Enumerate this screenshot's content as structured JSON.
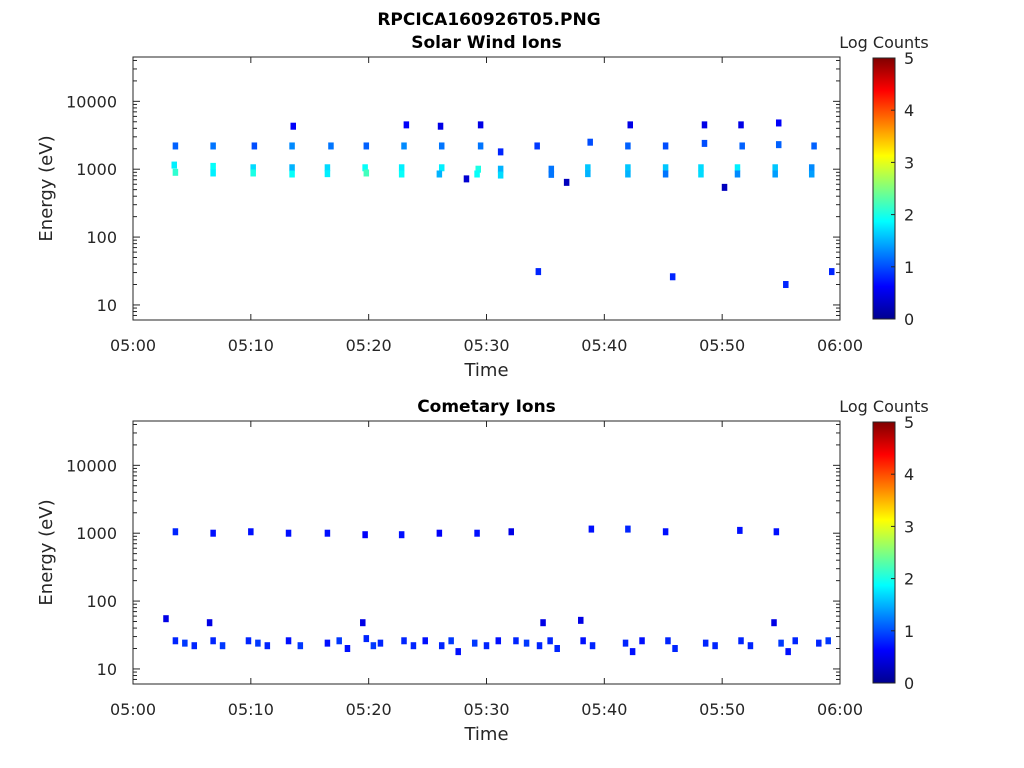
{
  "figure_title": "RPCICA160926T05.PNG",
  "chart_data": [
    {
      "type": "heatmap",
      "title": "Solar Wind Ions",
      "xlabel": "Time",
      "ylabel": "Energy (eV)",
      "x_ticks": [
        "05:00",
        "05:10",
        "05:20",
        "05:30",
        "05:40",
        "05:50",
        "06:00"
      ],
      "y_ticks": [
        "10",
        "100",
        "1000",
        "10000"
      ],
      "y_scale": "log",
      "ylim": [
        6,
        45000
      ],
      "xlim_minutes": [
        0,
        60
      ],
      "colorbar": {
        "label": "Log Counts",
        "ticks": [
          "0",
          "1",
          "2",
          "3",
          "4",
          "5"
        ],
        "range": [
          0,
          5
        ],
        "colormap": "jet"
      },
      "grid": false,
      "cells": [
        {
          "t": 3.6,
          "e": 2200,
          "v": 1.1
        },
        {
          "t": 3.5,
          "e": 1150,
          "v": 1.8
        },
        {
          "t": 3.6,
          "e": 900,
          "v": 2.1
        },
        {
          "t": 6.8,
          "e": 2200,
          "v": 1.2
        },
        {
          "t": 6.8,
          "e": 1100,
          "v": 1.9
        },
        {
          "t": 6.8,
          "e": 880,
          "v": 1.8
        },
        {
          "t": 10.3,
          "e": 2200,
          "v": 1.0
        },
        {
          "t": 10.2,
          "e": 1050,
          "v": 1.7
        },
        {
          "t": 10.2,
          "e": 880,
          "v": 2.0
        },
        {
          "t": 13.6,
          "e": 4300,
          "v": 0.6
        },
        {
          "t": 13.5,
          "e": 2200,
          "v": 1.3
        },
        {
          "t": 13.5,
          "e": 1050,
          "v": 1.5
        },
        {
          "t": 13.5,
          "e": 850,
          "v": 1.9
        },
        {
          "t": 16.8,
          "e": 2200,
          "v": 1.2
        },
        {
          "t": 16.5,
          "e": 1050,
          "v": 1.7
        },
        {
          "t": 16.5,
          "e": 860,
          "v": 1.8
        },
        {
          "t": 19.8,
          "e": 2200,
          "v": 1.1
        },
        {
          "t": 19.7,
          "e": 1050,
          "v": 1.9
        },
        {
          "t": 19.8,
          "e": 880,
          "v": 2.2
        },
        {
          "t": 23.2,
          "e": 4500,
          "v": 0.6
        },
        {
          "t": 23.0,
          "e": 2200,
          "v": 1.3
        },
        {
          "t": 22.8,
          "e": 1050,
          "v": 1.8
        },
        {
          "t": 22.8,
          "e": 850,
          "v": 1.9
        },
        {
          "t": 26.1,
          "e": 4300,
          "v": 0.5
        },
        {
          "t": 26.2,
          "e": 2200,
          "v": 1.2
        },
        {
          "t": 26.2,
          "e": 1050,
          "v": 1.8
        },
        {
          "t": 26.0,
          "e": 850,
          "v": 1.5
        },
        {
          "t": 28.3,
          "e": 720,
          "v": 0.4
        },
        {
          "t": 29.5,
          "e": 4500,
          "v": 0.5
        },
        {
          "t": 29.5,
          "e": 2200,
          "v": 1.2
        },
        {
          "t": 29.3,
          "e": 1000,
          "v": 2.0
        },
        {
          "t": 29.2,
          "e": 850,
          "v": 1.9
        },
        {
          "t": 31.2,
          "e": 1800,
          "v": 0.8
        },
        {
          "t": 31.2,
          "e": 1000,
          "v": 1.5
        },
        {
          "t": 31.2,
          "e": 820,
          "v": 1.7
        },
        {
          "t": 34.3,
          "e": 2200,
          "v": 0.9
        },
        {
          "t": 34.4,
          "e": 31,
          "v": 0.8
        },
        {
          "t": 35.5,
          "e": 1000,
          "v": 1.2
        },
        {
          "t": 35.5,
          "e": 840,
          "v": 1.2
        },
        {
          "t": 36.8,
          "e": 640,
          "v": 0.3
        },
        {
          "t": 38.8,
          "e": 2500,
          "v": 1.0
        },
        {
          "t": 38.6,
          "e": 1050,
          "v": 1.6
        },
        {
          "t": 38.6,
          "e": 860,
          "v": 1.5
        },
        {
          "t": 42.2,
          "e": 4500,
          "v": 0.5
        },
        {
          "t": 42.0,
          "e": 2200,
          "v": 1.1
        },
        {
          "t": 42.0,
          "e": 1050,
          "v": 1.6
        },
        {
          "t": 42.0,
          "e": 850,
          "v": 1.5
        },
        {
          "t": 45.2,
          "e": 2200,
          "v": 1.0
        },
        {
          "t": 45.2,
          "e": 1050,
          "v": 1.6
        },
        {
          "t": 45.2,
          "e": 850,
          "v": 1.2
        },
        {
          "t": 45.8,
          "e": 26,
          "v": 0.8
        },
        {
          "t": 48.5,
          "e": 4500,
          "v": 0.5
        },
        {
          "t": 48.5,
          "e": 2400,
          "v": 1.0
        },
        {
          "t": 48.2,
          "e": 1050,
          "v": 1.7
        },
        {
          "t": 48.2,
          "e": 850,
          "v": 1.7
        },
        {
          "t": 50.2,
          "e": 540,
          "v": 0.3
        },
        {
          "t": 51.6,
          "e": 4500,
          "v": 0.5
        },
        {
          "t": 51.7,
          "e": 2200,
          "v": 1.1
        },
        {
          "t": 51.3,
          "e": 1050,
          "v": 1.8
        },
        {
          "t": 51.3,
          "e": 850,
          "v": 1.3
        },
        {
          "t": 54.8,
          "e": 4800,
          "v": 0.6
        },
        {
          "t": 54.8,
          "e": 2300,
          "v": 1.1
        },
        {
          "t": 54.5,
          "e": 1050,
          "v": 1.6
        },
        {
          "t": 54.5,
          "e": 850,
          "v": 1.4
        },
        {
          "t": 55.4,
          "e": 20,
          "v": 0.8
        },
        {
          "t": 57.8,
          "e": 2200,
          "v": 1.1
        },
        {
          "t": 57.6,
          "e": 1050,
          "v": 1.3
        },
        {
          "t": 57.6,
          "e": 850,
          "v": 1.4
        },
        {
          "t": 59.3,
          "e": 31,
          "v": 0.8
        }
      ]
    },
    {
      "type": "heatmap",
      "title": "Cometary Ions",
      "xlabel": "Time",
      "ylabel": "Energy (eV)",
      "x_ticks": [
        "05:00",
        "05:10",
        "05:20",
        "05:30",
        "05:40",
        "05:50",
        "06:00"
      ],
      "y_ticks": [
        "10",
        "100",
        "1000",
        "10000"
      ],
      "y_scale": "log",
      "ylim": [
        6,
        45000
      ],
      "xlim_minutes": [
        0,
        60
      ],
      "colorbar": {
        "label": "Log Counts",
        "ticks": [
          "0",
          "1",
          "2",
          "3",
          "4",
          "5"
        ],
        "range": [
          0,
          5
        ],
        "colormap": "jet"
      },
      "grid": false,
      "cells": [
        {
          "t": 3.6,
          "e": 1050,
          "v": 0.8
        },
        {
          "t": 6.8,
          "e": 1000,
          "v": 0.7
        },
        {
          "t": 10.0,
          "e": 1050,
          "v": 0.7
        },
        {
          "t": 13.2,
          "e": 1000,
          "v": 0.7
        },
        {
          "t": 16.5,
          "e": 1000,
          "v": 0.7
        },
        {
          "t": 19.7,
          "e": 950,
          "v": 0.6
        },
        {
          "t": 22.8,
          "e": 950,
          "v": 0.7
        },
        {
          "t": 26.0,
          "e": 1000,
          "v": 0.6
        },
        {
          "t": 29.2,
          "e": 1000,
          "v": 0.7
        },
        {
          "t": 32.1,
          "e": 1050,
          "v": 0.5
        },
        {
          "t": 38.9,
          "e": 1150,
          "v": 0.7
        },
        {
          "t": 42.0,
          "e": 1150,
          "v": 0.8
        },
        {
          "t": 45.2,
          "e": 1050,
          "v": 0.7
        },
        {
          "t": 51.5,
          "e": 1100,
          "v": 0.7
        },
        {
          "t": 54.6,
          "e": 1050,
          "v": 0.7
        },
        {
          "t": 2.8,
          "e": 55,
          "v": 0.5
        },
        {
          "t": 6.5,
          "e": 48,
          "v": 0.5
        },
        {
          "t": 19.5,
          "e": 48,
          "v": 0.5
        },
        {
          "t": 34.8,
          "e": 48,
          "v": 0.5
        },
        {
          "t": 38.0,
          "e": 52,
          "v": 0.5
        },
        {
          "t": 54.4,
          "e": 48,
          "v": 0.5
        },
        {
          "t": 3.6,
          "e": 26,
          "v": 0.8
        },
        {
          "t": 4.4,
          "e": 24,
          "v": 0.9
        },
        {
          "t": 5.2,
          "e": 22,
          "v": 0.8
        },
        {
          "t": 6.8,
          "e": 26,
          "v": 0.8
        },
        {
          "t": 7.6,
          "e": 22,
          "v": 0.9
        },
        {
          "t": 9.8,
          "e": 26,
          "v": 0.8
        },
        {
          "t": 10.6,
          "e": 24,
          "v": 0.9
        },
        {
          "t": 11.4,
          "e": 22,
          "v": 0.8
        },
        {
          "t": 13.2,
          "e": 26,
          "v": 0.7
        },
        {
          "t": 14.2,
          "e": 22,
          "v": 0.9
        },
        {
          "t": 16.5,
          "e": 24,
          "v": 0.7
        },
        {
          "t": 17.5,
          "e": 26,
          "v": 0.9
        },
        {
          "t": 18.2,
          "e": 20,
          "v": 0.7
        },
        {
          "t": 19.8,
          "e": 28,
          "v": 0.8
        },
        {
          "t": 20.4,
          "e": 22,
          "v": 0.9
        },
        {
          "t": 21.0,
          "e": 24,
          "v": 0.8
        },
        {
          "t": 23.0,
          "e": 26,
          "v": 0.8
        },
        {
          "t": 23.8,
          "e": 22,
          "v": 0.8
        },
        {
          "t": 24.8,
          "e": 26,
          "v": 0.7
        },
        {
          "t": 26.2,
          "e": 22,
          "v": 0.8
        },
        {
          "t": 27.0,
          "e": 26,
          "v": 0.9
        },
        {
          "t": 27.6,
          "e": 18,
          "v": 0.7
        },
        {
          "t": 29.0,
          "e": 24,
          "v": 0.9
        },
        {
          "t": 30.0,
          "e": 22,
          "v": 0.8
        },
        {
          "t": 31.0,
          "e": 26,
          "v": 0.7
        },
        {
          "t": 32.5,
          "e": 26,
          "v": 0.8
        },
        {
          "t": 33.4,
          "e": 24,
          "v": 0.9
        },
        {
          "t": 34.5,
          "e": 22,
          "v": 0.8
        },
        {
          "t": 35.4,
          "e": 26,
          "v": 0.8
        },
        {
          "t": 36.0,
          "e": 20,
          "v": 0.8
        },
        {
          "t": 38.2,
          "e": 26,
          "v": 0.7
        },
        {
          "t": 39.0,
          "e": 22,
          "v": 0.8
        },
        {
          "t": 41.8,
          "e": 24,
          "v": 0.8
        },
        {
          "t": 42.4,
          "e": 18,
          "v": 0.7
        },
        {
          "t": 43.2,
          "e": 26,
          "v": 0.7
        },
        {
          "t": 45.4,
          "e": 26,
          "v": 0.8
        },
        {
          "t": 46.0,
          "e": 20,
          "v": 0.8
        },
        {
          "t": 48.6,
          "e": 24,
          "v": 0.8
        },
        {
          "t": 49.4,
          "e": 22,
          "v": 0.8
        },
        {
          "t": 51.6,
          "e": 26,
          "v": 0.8
        },
        {
          "t": 52.4,
          "e": 22,
          "v": 0.8
        },
        {
          "t": 55.0,
          "e": 24,
          "v": 0.9
        },
        {
          "t": 55.6,
          "e": 18,
          "v": 0.7
        },
        {
          "t": 56.2,
          "e": 26,
          "v": 0.8
        },
        {
          "t": 58.2,
          "e": 24,
          "v": 0.8
        },
        {
          "t": 59.0,
          "e": 26,
          "v": 0.9
        }
      ]
    }
  ]
}
